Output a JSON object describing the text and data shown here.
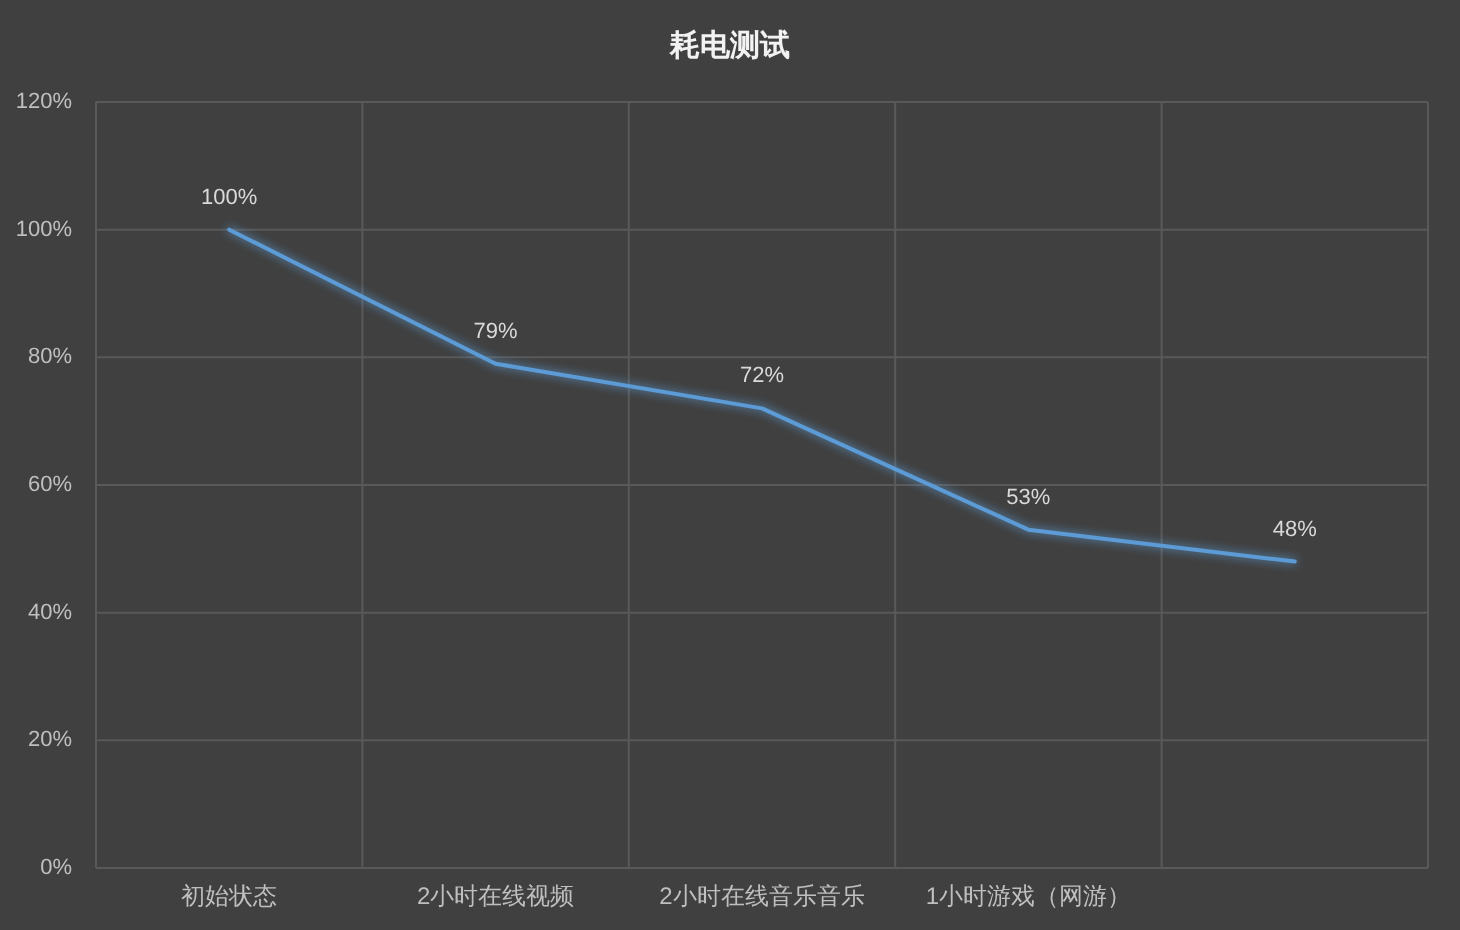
{
  "chart_data": {
    "type": "line",
    "title": "耗电测试",
    "categories": [
      "初始状态",
      "2小时在线视频",
      "2小时在线音乐音乐",
      "1小时游戏（网游）",
      null
    ],
    "series": [
      {
        "color": "#5b9bd5",
        "values": [
          100,
          79,
          72,
          53,
          48
        ],
        "value_labels": [
          "100%",
          "79%",
          "72%",
          "53%",
          "48%"
        ]
      }
    ],
    "ylim": [
      0,
      120
    ],
    "yticks": [
      {
        "value": 0,
        "label": "0%"
      },
      {
        "value": 20,
        "label": "20%"
      },
      {
        "value": 40,
        "label": "40%"
      },
      {
        "value": 60,
        "label": "60%"
      },
      {
        "value": 80,
        "label": "80%"
      },
      {
        "value": 100,
        "label": "100%"
      },
      {
        "value": 120,
        "label": "120%"
      }
    ],
    "grid": true
  }
}
